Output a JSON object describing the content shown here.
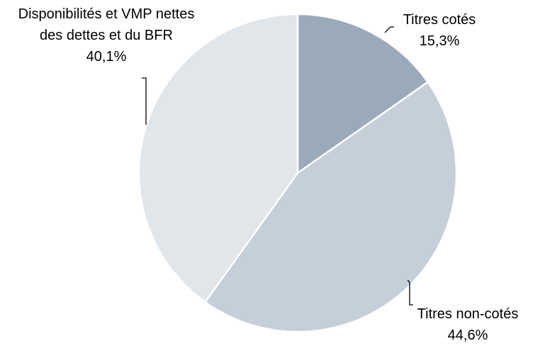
{
  "chart_data": {
    "type": "pie",
    "categories": [
      "Titres cotés",
      "Titres non-cotés",
      "Disponibilités et VMP nettes des dettes et du BFR"
    ],
    "values": [
      15.3,
      44.6,
      40.1
    ],
    "value_labels": [
      "15,3%",
      "44,6%",
      "40,1%"
    ],
    "colors": [
      "#9aaabb",
      "#c5cfd9",
      "#e1e6eb"
    ]
  }
}
